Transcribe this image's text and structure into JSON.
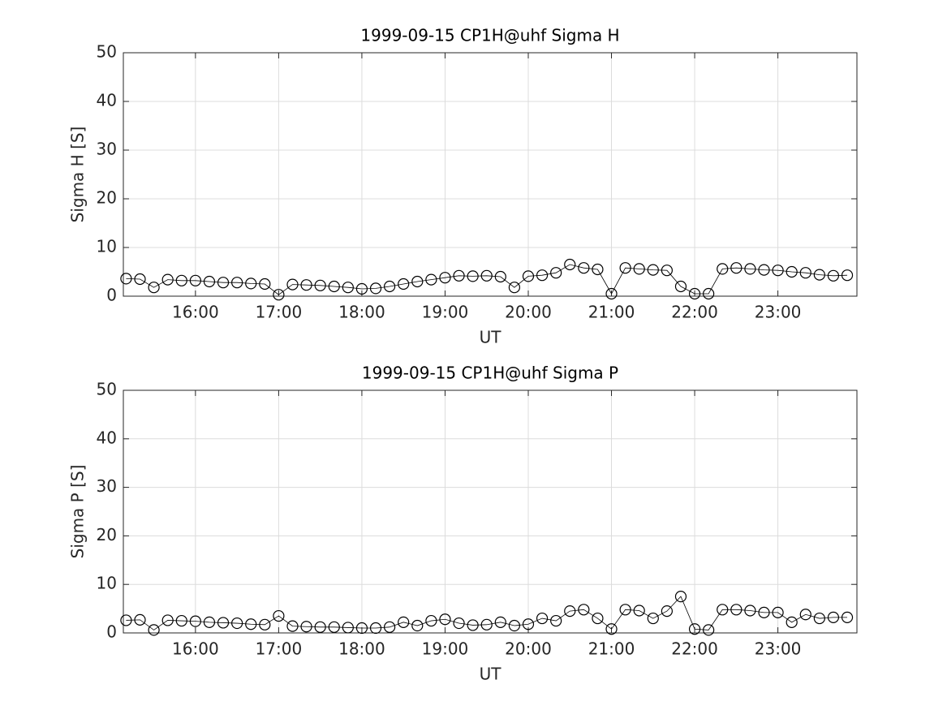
{
  "chart_data": [
    {
      "type": "line",
      "title": "1999-09-15  CP1H@uhf Sigma H",
      "xlabel": "UT",
      "ylabel": "Sigma H [S]",
      "color": "#000000",
      "marker": "circle",
      "grid": true,
      "xlim": [
        "15:08",
        "23:57"
      ],
      "xticks": [
        "16:00",
        "17:00",
        "18:00",
        "19:00",
        "20:00",
        "21:00",
        "22:00",
        "23:00"
      ],
      "ylim": [
        0,
        50
      ],
      "yticks": [
        0,
        10,
        20,
        30,
        40,
        50
      ],
      "x": [
        "15:10",
        "15:20",
        "15:30",
        "15:40",
        "15:50",
        "16:00",
        "16:10",
        "16:20",
        "16:30",
        "16:40",
        "16:50",
        "17:00",
        "17:10",
        "17:20",
        "17:30",
        "17:40",
        "17:50",
        "18:00",
        "18:10",
        "18:20",
        "18:30",
        "18:40",
        "18:50",
        "19:00",
        "19:10",
        "19:20",
        "19:30",
        "19:40",
        "19:50",
        "20:00",
        "20:10",
        "20:20",
        "20:30",
        "20:40",
        "20:50",
        "21:00",
        "21:10",
        "21:20",
        "21:30",
        "21:40",
        "21:50",
        "22:00",
        "22:10",
        "22:20",
        "22:30",
        "22:40",
        "22:50",
        "23:00",
        "23:10",
        "23:20",
        "23:30",
        "23:40",
        "23:50"
      ],
      "values": [
        3.6,
        3.5,
        1.8,
        3.4,
        3.2,
        3.2,
        3.0,
        2.8,
        2.8,
        2.6,
        2.5,
        0.3,
        2.4,
        2.3,
        2.2,
        2.0,
        1.8,
        1.5,
        1.6,
        2.0,
        2.5,
        3.0,
        3.4,
        3.8,
        4.2,
        4.1,
        4.2,
        4.0,
        1.8,
        4.1,
        4.3,
        4.8,
        6.5,
        5.8,
        5.5,
        0.5,
        5.8,
        5.6,
        5.4,
        5.3,
        2.0,
        0.5,
        0.5,
        5.6,
        5.8,
        5.6,
        5.4,
        5.3,
        5.0,
        4.8,
        4.4,
        4.2,
        4.3
      ]
    },
    {
      "type": "line",
      "title": "1999-09-15  CP1H@uhf Sigma P",
      "xlabel": "UT",
      "ylabel": "Sigma P [S]",
      "color": "#000000",
      "marker": "circle",
      "grid": true,
      "xlim": [
        "15:08",
        "23:57"
      ],
      "xticks": [
        "16:00",
        "17:00",
        "18:00",
        "19:00",
        "20:00",
        "21:00",
        "22:00",
        "23:00"
      ],
      "ylim": [
        0,
        50
      ],
      "yticks": [
        0,
        10,
        20,
        30,
        40,
        50
      ],
      "x": [
        "15:10",
        "15:20",
        "15:30",
        "15:40",
        "15:50",
        "16:00",
        "16:10",
        "16:20",
        "16:30",
        "16:40",
        "16:50",
        "17:00",
        "17:10",
        "17:20",
        "17:30",
        "17:40",
        "17:50",
        "18:00",
        "18:10",
        "18:20",
        "18:30",
        "18:40",
        "18:50",
        "19:00",
        "19:10",
        "19:20",
        "19:30",
        "19:40",
        "19:50",
        "20:00",
        "20:10",
        "20:20",
        "20:30",
        "20:40",
        "20:50",
        "21:00",
        "21:10",
        "21:20",
        "21:30",
        "21:40",
        "21:50",
        "22:00",
        "22:10",
        "22:20",
        "22:30",
        "22:40",
        "22:50",
        "23:00",
        "23:10",
        "23:20",
        "23:30",
        "23:40",
        "23:50"
      ],
      "values": [
        2.6,
        2.7,
        0.6,
        2.6,
        2.5,
        2.4,
        2.2,
        2.1,
        2.0,
        1.8,
        1.7,
        3.5,
        1.4,
        1.3,
        1.2,
        1.2,
        1.1,
        1.0,
        1.0,
        1.2,
        2.2,
        1.5,
        2.5,
        2.8,
        2.0,
        1.6,
        1.7,
        2.2,
        1.5,
        1.8,
        3.0,
        2.5,
        4.5,
        4.8,
        3.0,
        0.8,
        4.8,
        4.6,
        3.0,
        4.5,
        7.5,
        0.8,
        0.6,
        4.8,
        4.8,
        4.6,
        4.2,
        4.2,
        2.2,
        3.8,
        3.0,
        3.2,
        3.2
      ]
    }
  ]
}
